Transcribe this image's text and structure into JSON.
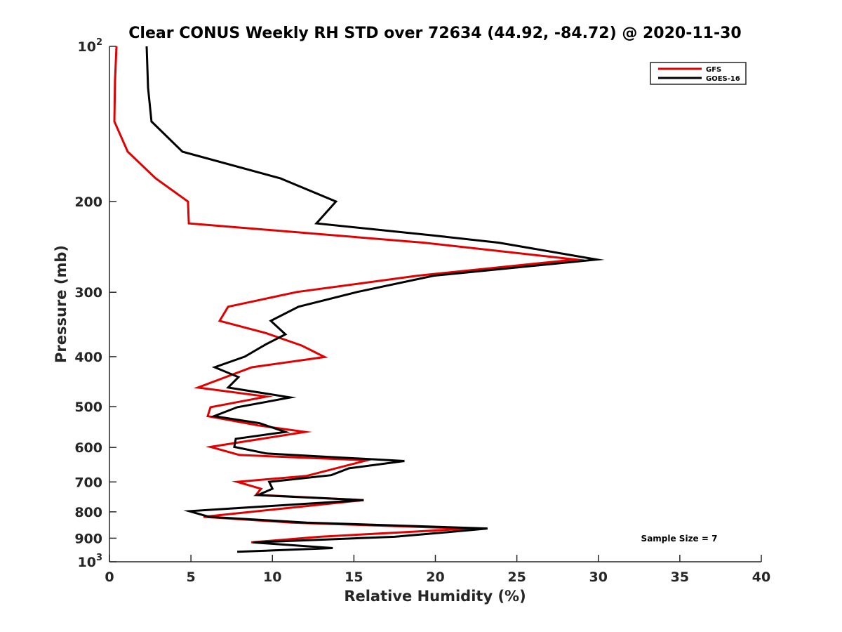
{
  "chart_data": {
    "type": "line",
    "title": "Clear CONUS Weekly RH STD over 72634 (44.92, -84.72) @ 2020-11-30",
    "xlabel": "Relative Humidity (%)",
    "ylabel": "Pressure (mb)",
    "xlim": [
      0,
      40
    ],
    "ylim": [
      100,
      1000
    ],
    "yscale": "log",
    "y_reversed": true,
    "grid": false,
    "x_ticks": [
      0,
      5,
      10,
      15,
      20,
      25,
      30,
      35,
      40
    ],
    "x_tick_labels": [
      "0",
      "5",
      "10",
      "15",
      "20",
      "25",
      "30",
      "35",
      "40"
    ],
    "y_ticks": [
      100,
      200,
      300,
      400,
      500,
      600,
      700,
      800,
      900,
      1000
    ],
    "y_tick_labels": [
      {
        "base": "10",
        "exp": "2"
      },
      {
        "base": "200"
      },
      {
        "base": "300"
      },
      {
        "base": "400"
      },
      {
        "base": "500"
      },
      {
        "base": "600"
      },
      {
        "base": "700"
      },
      {
        "base": "800"
      },
      {
        "base": "900"
      },
      {
        "base": "10",
        "exp": "3"
      }
    ],
    "legend": {
      "position": "top-right",
      "entries": [
        "GFS",
        "GOES-16"
      ]
    },
    "annotation": "Sample Size = 7",
    "series": [
      {
        "name": "GFS",
        "color": "#e00000",
        "points": [
          [
            0.43,
            100
          ],
          [
            0.34,
            116.6
          ],
          [
            0.3,
            139.9
          ],
          [
            1.12,
            160.1
          ],
          [
            2.84,
            180.4
          ],
          [
            4.82,
            200
          ],
          [
            4.87,
            220.5
          ],
          [
            19.3,
            240.4
          ],
          [
            28.6,
            259.2
          ],
          [
            18.9,
            278.6
          ],
          [
            11.5,
            299.6
          ],
          [
            7.28,
            320
          ],
          [
            6.76,
            340.8
          ],
          [
            9.56,
            359.6
          ],
          [
            11.8,
            380.6
          ],
          [
            13.2,
            400.6
          ],
          [
            8.74,
            419.4
          ],
          [
            5.43,
            459.2
          ],
          [
            9.64,
            478.2
          ],
          [
            6.2,
            501.4
          ],
          [
            6.03,
            521.7
          ],
          [
            9.13,
            543.7
          ],
          [
            12.0,
            559.9
          ],
          [
            6.2,
            598.5
          ],
          [
            7.97,
            620.5
          ],
          [
            15.8,
            635.5
          ],
          [
            12.1,
            681.3
          ],
          [
            7.84,
            699.8
          ],
          [
            9.3,
            721.7
          ],
          [
            9.0,
            741.4
          ],
          [
            15.6,
            759.3
          ],
          [
            5.77,
            818.1
          ],
          [
            11.2,
            839.5
          ],
          [
            22.1,
            862.3
          ],
          [
            12.9,
            894.3
          ],
          [
            8.7,
            917.1
          ]
        ]
      },
      {
        "name": "GOES-16",
        "color": "#000000",
        "points": [
          [
            2.28,
            100
          ],
          [
            2.37,
            120.3
          ],
          [
            2.58,
            139.9
          ],
          [
            4.48,
            160.1
          ],
          [
            10.5,
            180.4
          ],
          [
            13.9,
            200
          ],
          [
            12.7,
            220.5
          ],
          [
            19.8,
            232.6
          ],
          [
            23.9,
            240.4
          ],
          [
            29.9,
            259.2
          ],
          [
            19.9,
            278.6
          ],
          [
            15.2,
            299.6
          ],
          [
            11.6,
            320
          ],
          [
            9.9,
            340.8
          ],
          [
            10.8,
            362
          ],
          [
            9.6,
            378.5
          ],
          [
            8.3,
            400
          ],
          [
            6.46,
            419.4
          ],
          [
            7.92,
            438.2
          ],
          [
            7.28,
            459.2
          ],
          [
            11.1,
            480
          ],
          [
            7.84,
            501.4
          ],
          [
            6.42,
            521.7
          ],
          [
            9.2,
            538.4
          ],
          [
            10.8,
            559.9
          ],
          [
            7.75,
            577.3
          ],
          [
            7.66,
            598.5
          ],
          [
            9.64,
            616.5
          ],
          [
            18.1,
            637.5
          ],
          [
            14.7,
            658.7
          ],
          [
            13.6,
            679.2
          ],
          [
            9.8,
            699.8
          ],
          [
            10.0,
            721.7
          ],
          [
            9.1,
            742.5
          ],
          [
            15.6,
            759.3
          ],
          [
            4.9,
            797.6
          ],
          [
            6.11,
            818.1
          ],
          [
            12.1,
            839.5
          ],
          [
            23.2,
            861.7
          ],
          [
            21.2,
            873.5
          ],
          [
            17.5,
            894.3
          ],
          [
            8.8,
            917.1
          ],
          [
            13.7,
            940.7
          ],
          [
            7.84,
            956.4
          ]
        ]
      }
    ]
  }
}
